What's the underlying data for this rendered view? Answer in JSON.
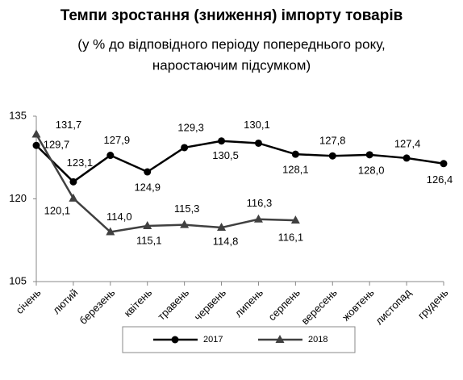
{
  "chart_data": {
    "type": "line",
    "title": "Темпи зростання (зниження) імпорту товарів",
    "subtitle": [
      "(у % до відповідного періоду попереднього року,",
      "наростаючим підсумком)"
    ],
    "categories": [
      "січень",
      "лютий",
      "березень",
      "квітень",
      "травень",
      "червень",
      "липень",
      "серпень",
      "вересень",
      "жовтень",
      "листопад",
      "грудень"
    ],
    "series": [
      {
        "name": "2017",
        "color": "#000000",
        "marker": "circle",
        "values": [
          129.7,
          123.1,
          127.9,
          124.9,
          129.3,
          130.5,
          130.1,
          128.1,
          127.8,
          128.0,
          127.4,
          126.4
        ],
        "value_labels": [
          "129,7",
          "123,1",
          "127,9",
          "124,9",
          "129,3",
          "130,5",
          "130,1",
          "128,1",
          "127,8",
          "128,0",
          "127,4",
          "126,4"
        ]
      },
      {
        "name": "2018",
        "color": "#404040",
        "marker": "triangle",
        "values": [
          131.7,
          120.1,
          114.0,
          115.1,
          115.3,
          114.8,
          116.3,
          116.1,
          null,
          null,
          null,
          null
        ],
        "value_labels": [
          "131,7",
          "120,1",
          "114,0",
          "115,1",
          "115,3",
          "114,8",
          "116,3",
          "116,1",
          null,
          null,
          null,
          null
        ]
      }
    ],
    "ylim": [
      105,
      135
    ],
    "yticks": [
      105,
      120,
      135
    ],
    "grid": false,
    "legend": "bottom"
  }
}
